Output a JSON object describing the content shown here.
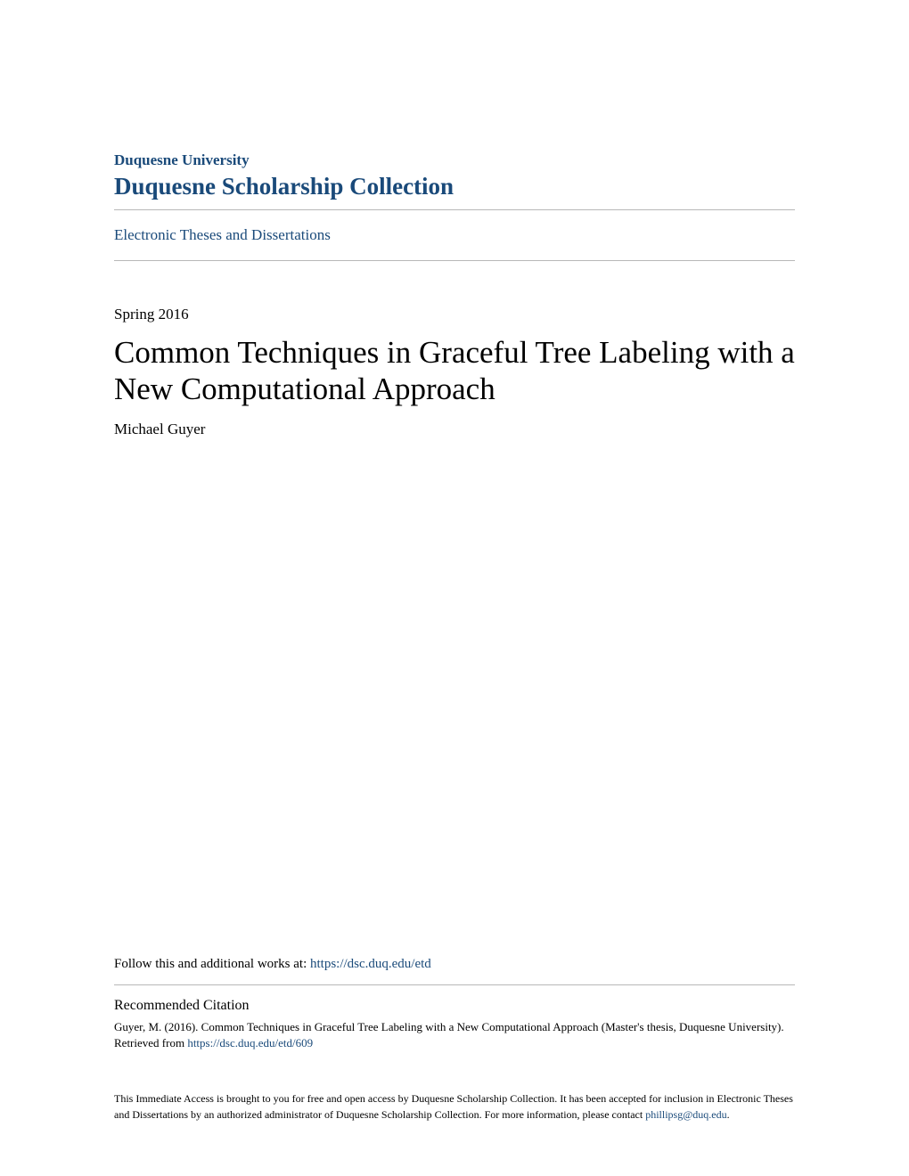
{
  "header": {
    "university": "Duquesne University",
    "collection": "Duquesne Scholarship Collection",
    "etd_link": "Electronic Theses and Dissertations"
  },
  "paper": {
    "date": "Spring 2016",
    "title": "Common Techniques in Graceful Tree Labeling with a New Computational Approach",
    "author": "Michael Guyer"
  },
  "follow": {
    "prefix": "Follow this and additional works at: ",
    "url": "https://dsc.duq.edu/etd"
  },
  "citation": {
    "heading": "Recommended Citation",
    "text_before": "Guyer, M. (2016). Common Techniques in Graceful Tree Labeling with a New Computational Approach (Master's thesis, Duquesne University). Retrieved from ",
    "url": "https://dsc.duq.edu/etd/609"
  },
  "footer": {
    "text_before": "This Immediate Access is brought to you for free and open access by Duquesne Scholarship Collection. It has been accepted for inclusion in Electronic Theses and Dissertations by an authorized administrator of Duquesne Scholarship Collection. For more information, please contact ",
    "email": "phillipsg@duq.edu",
    "text_after": "."
  },
  "colors": {
    "link": "#1a4a7a",
    "text": "#000000",
    "divider": "#b8b8b8",
    "background": "#ffffff"
  },
  "typography": {
    "university_fontsize": 17,
    "collection_fontsize": 27,
    "title_fontsize": 35,
    "body_fontsize": 17,
    "follow_fontsize": 15,
    "citation_heading_fontsize": 16,
    "citation_fontsize": 13,
    "footer_fontsize": 12,
    "font_family": "Georgia, serif"
  }
}
